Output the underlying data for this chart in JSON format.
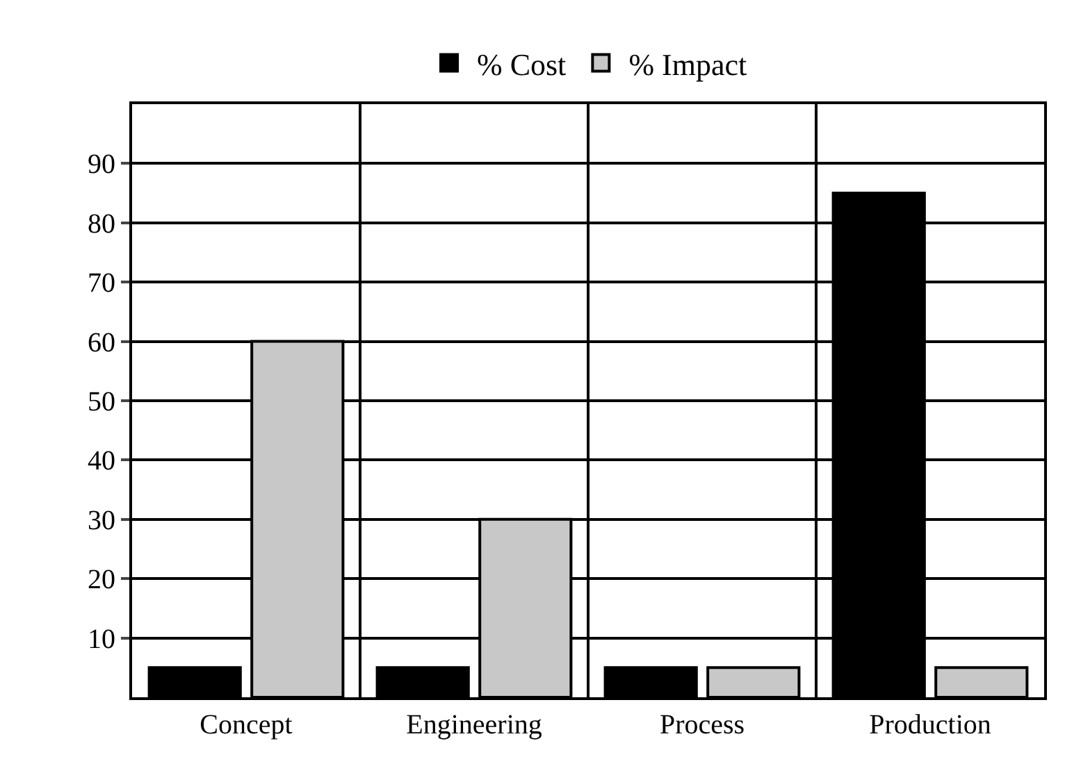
{
  "chart_data": {
    "type": "bar",
    "categories": [
      "Concept",
      "Engineering",
      "Process",
      "Production"
    ],
    "series": [
      {
        "name": "% Cost",
        "color": "#000000",
        "values": [
          5,
          5,
          5,
          85
        ]
      },
      {
        "name": "% Impact",
        "color": "#c8c8c8",
        "values": [
          60,
          30,
          5,
          5
        ]
      }
    ],
    "ylim": [
      0,
      100
    ],
    "yticks": [
      10,
      20,
      30,
      40,
      50,
      60,
      70,
      80,
      90
    ],
    "grid": true,
    "legend": "top"
  }
}
